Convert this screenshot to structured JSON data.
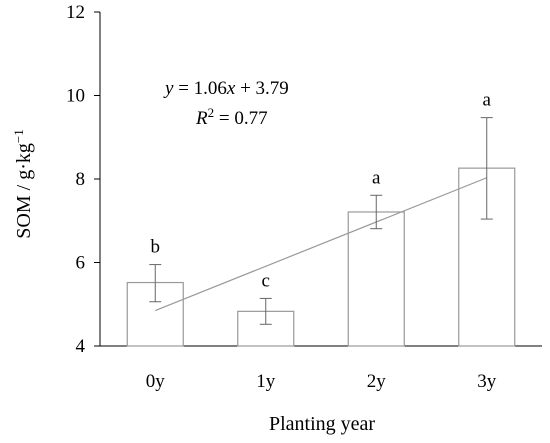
{
  "chart_data": {
    "type": "bar",
    "categories": [
      "0y",
      "1y",
      "2y",
      "3y"
    ],
    "values": [
      5.52,
      4.83,
      7.21,
      8.26
    ],
    "error_low": [
      5.06,
      4.52,
      6.81,
      7.04
    ],
    "error_high": [
      5.95,
      5.14,
      7.61,
      9.47
    ],
    "significance_letters": [
      "b",
      "c",
      "a",
      "a"
    ],
    "xlabel": "Planting year",
    "ylabel": {
      "prefix": "SOM / g·kg",
      "superscript": "−1"
    },
    "ylim": [
      4,
      12
    ],
    "yticks": [
      "4",
      "6",
      "8",
      "10",
      "12"
    ],
    "trendline": {
      "slope": 1.06,
      "intercept": 3.79,
      "x_start": 1,
      "x_end": 4,
      "equation": {
        "y_var": "y",
        "equals_prefix": " = 1.06",
        "x_var": "x",
        "rest": " + 3.79"
      },
      "r2": {
        "r_var": "R",
        "sup": "2",
        "rest": " = 0.77"
      }
    },
    "grid": false,
    "colors": {
      "bar_fill": "#ffffff",
      "bar_stroke": "#999999",
      "trendline": "#999999",
      "error_bar": "#666666",
      "axis": "#000000"
    }
  }
}
